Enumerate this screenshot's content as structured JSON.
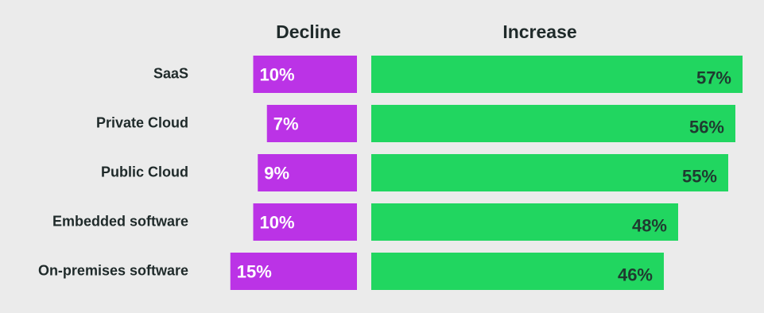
{
  "chart_data": {
    "type": "bar",
    "categories": [
      "SaaS",
      "Private Cloud",
      "Public Cloud",
      "Embedded software",
      "On-premises software"
    ],
    "series": [
      {
        "name": "Decline",
        "color": "#bb33e6",
        "values": [
          10,
          7,
          9,
          10,
          15
        ],
        "value_labels": [
          "10%",
          "7%",
          "9%",
          "10%",
          "15%"
        ]
      },
      {
        "name": "Increase",
        "color": "#21d660",
        "values": [
          57,
          56,
          55,
          48,
          46
        ],
        "value_labels": [
          "57%",
          "56%",
          "55%",
          "48%",
          "46%"
        ]
      }
    ]
  }
}
